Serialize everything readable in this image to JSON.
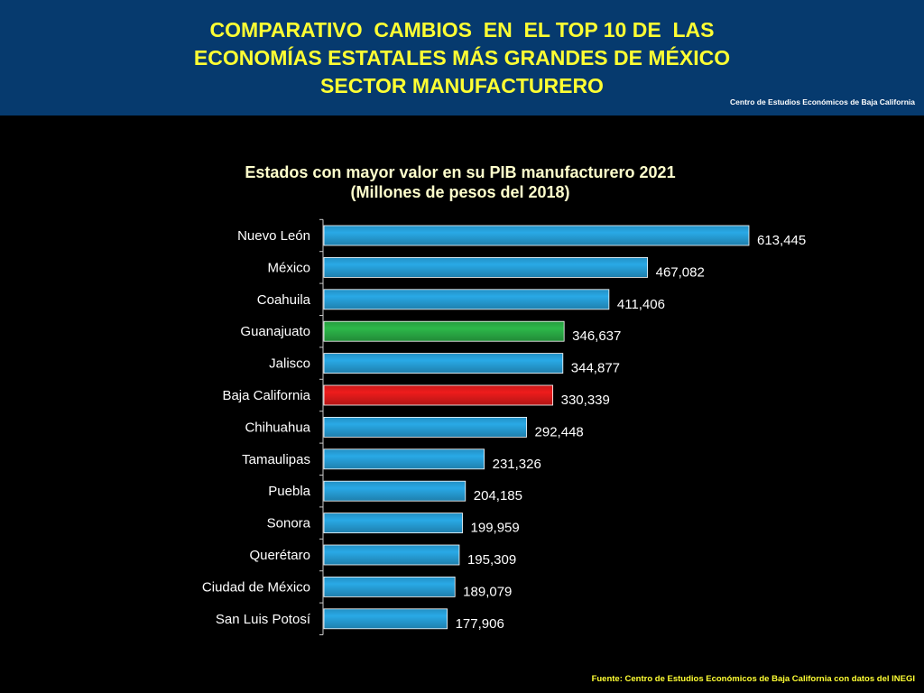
{
  "header": {
    "title_lines": [
      "COMPARATIVO  CAMBIOS  EN  EL TOP 10 DE  LAS",
      "ECONOMÍAS ESTATALES MÁS GRANDES DE MÉXICO",
      "SECTOR MANUFACTURERO"
    ],
    "credit": "Centro de Estudios Económicos de Baja California"
  },
  "footer": {
    "source": "Fuente:  Centro de Estudios Económicos de Baja California con datos del INEGI"
  },
  "colors": {
    "header_bg": "#063a6e",
    "title_text": "#ffff33",
    "bar_default": "#29a9e6",
    "bar_highlight_green": "#2db84a",
    "bar_highlight_red": "#ee1c1c"
  },
  "chart_data": {
    "type": "bar",
    "orientation": "horizontal",
    "title": "Estados con mayor valor en su PIB manufacturero 2021",
    "subtitle": "(Millones de pesos del 2018)",
    "xlabel": "",
    "ylabel": "",
    "grid": false,
    "legend": "none",
    "xlim": [
      0,
      613445
    ],
    "categories": [
      "Nuevo León",
      "México",
      "Coahuila",
      "Guanajuato",
      "Jalisco",
      "Baja California",
      "Chihuahua",
      "Tamaulipas",
      "Puebla",
      "Sonora",
      "Querétaro",
      "Ciudad de México",
      "San Luis Potosí"
    ],
    "values": [
      613445,
      467082,
      411406,
      346637,
      344877,
      330339,
      292448,
      231326,
      204185,
      199959,
      195309,
      189079,
      177906
    ],
    "value_labels": [
      "613,445",
      "467,082",
      "411,406",
      "346,637",
      "344,877",
      "330,339",
      "292,448",
      "231,326",
      "204,185",
      "199,959",
      "195,309",
      "189,079",
      "177,906"
    ],
    "bar_colors": [
      "#29a9e6",
      "#29a9e6",
      "#29a9e6",
      "#2db84a",
      "#29a9e6",
      "#ee1c1c",
      "#29a9e6",
      "#29a9e6",
      "#29a9e6",
      "#29a9e6",
      "#29a9e6",
      "#29a9e6",
      "#29a9e6"
    ]
  }
}
